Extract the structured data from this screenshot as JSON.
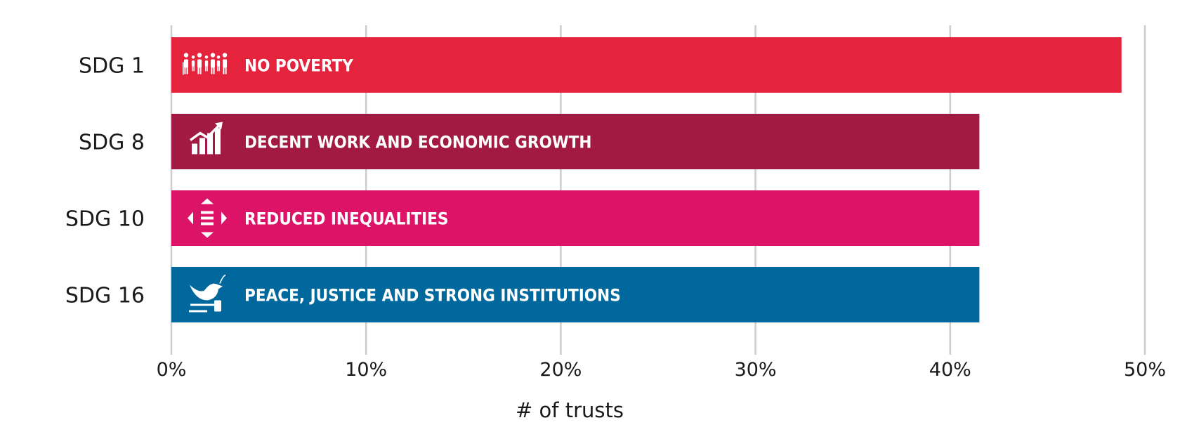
{
  "chart_data": {
    "type": "bar",
    "orientation": "horizontal",
    "categories": [
      "SDG 1",
      "SDG 8",
      "SDG 10",
      "SDG 16"
    ],
    "bar_labels": [
      "NO POVERTY",
      "DECENT WORK AND ECONOMIC GROWTH",
      "REDUCED INEQUALITIES",
      "PEACE, JUSTICE AND STRONG INSTITUTIONS"
    ],
    "icons": [
      "people-icon",
      "growth-chart-icon",
      "inequality-icon",
      "dove-gavel-icon"
    ],
    "values": [
      48.8,
      41.5,
      41.5,
      41.5
    ],
    "colors": [
      "#E5233D",
      "#A21942",
      "#DD1367",
      "#00689D"
    ],
    "xlabel": "# of trusts",
    "ylabel": "",
    "xlim": [
      0,
      50
    ],
    "xticks": [
      "0%",
      "10%",
      "20%",
      "30%",
      "40%",
      "50%"
    ],
    "grid": true,
    "legend": "none"
  }
}
